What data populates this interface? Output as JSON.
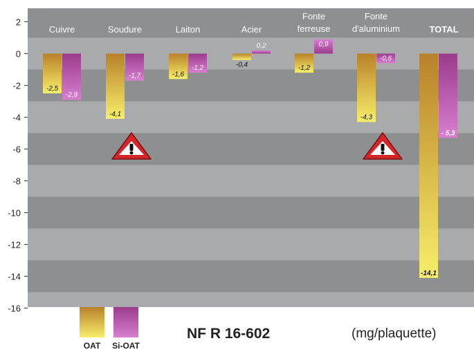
{
  "chart_data": {
    "type": "bar",
    "categories": [
      [
        "Cuivre"
      ],
      [
        "Soudure"
      ],
      [
        "Laiton"
      ],
      [
        "Acier"
      ],
      [
        "Fonte",
        "ferreuse"
      ],
      [
        "Fonte",
        "d'aluminium"
      ],
      [
        "TOTAL"
      ]
    ],
    "series": [
      {
        "name": "OAT",
        "values": [
          -2.5,
          -4.1,
          -1.6,
          -0.4,
          -1.2,
          -4.3,
          -14.1
        ],
        "labels": [
          "-2,5",
          "-4,1",
          "-1,6",
          "-0,4",
          "-1,2",
          "-4,3",
          "-14,1"
        ]
      },
      {
        "name": "Si-OAT",
        "values": [
          -2.9,
          -1.7,
          -1.2,
          0.2,
          0.9,
          -0.6,
          -5.3
        ],
        "labels": [
          "-2,9",
          "-1,7",
          "-1,2",
          "0,2",
          "0,9",
          "-0,6",
          "- 5,3"
        ]
      }
    ],
    "yticks": [
      2,
      0,
      -2,
      -4,
      -6,
      -8,
      -10,
      -12,
      -14,
      -16
    ],
    "ylim": [
      -16,
      2.8
    ],
    "grid": "horizontal bands",
    "legend": "bottom-left",
    "warnings": [
      "Soudure",
      "Fonte d'aluminium"
    ],
    "norm": "NF R 16-602",
    "unit": "(mg/plaquette)",
    "colors": {
      "oat_top": "#b8812a",
      "oat_bottom": "#f7ee6a",
      "sioat_top": "#9b3b8c",
      "sioat_bottom": "#d77fd0",
      "band_dark": "#8e8f91",
      "band_light": "#a9aaac",
      "warning_red": "#d4262a"
    }
  }
}
